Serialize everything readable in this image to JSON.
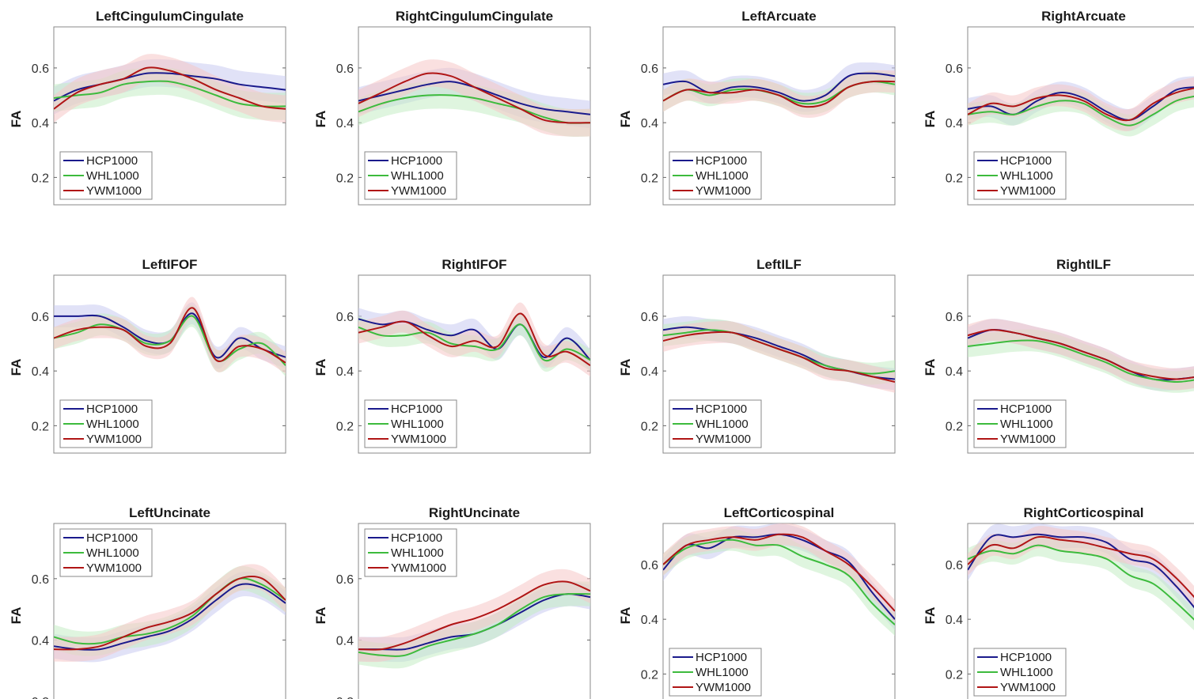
{
  "figure": {
    "legend_labels": [
      "HCP1000",
      "WHL1000",
      "YWM1000"
    ],
    "series_colors": {
      "HCP1000": "#1a1a8c",
      "WHL1000": "#3dbb3d",
      "YWM1000": "#b01515"
    },
    "band_colors": {
      "HCP1000": "#c9cbf0",
      "WHL1000": "#c5ecc5",
      "YWM1000": "#f5c6c6"
    },
    "ylabel": "FA",
    "yticks": [
      "0.2",
      "0.4",
      "0.6"
    ]
  },
  "chart_data": [
    {
      "type": "line",
      "title": "LeftCingulumCingulate",
      "ylabel": "FA",
      "ylim": [
        0.1,
        0.75
      ],
      "x": [
        0,
        1,
        2,
        3,
        4,
        5,
        6,
        7,
        8,
        9,
        10
      ],
      "legend": "bottom-left",
      "series": [
        {
          "name": "HCP1000",
          "values": [
            0.48,
            0.52,
            0.54,
            0.56,
            0.58,
            0.58,
            0.57,
            0.56,
            0.54,
            0.53,
            0.52
          ],
          "band": 0.05
        },
        {
          "name": "WHL1000",
          "values": [
            0.49,
            0.5,
            0.51,
            0.54,
            0.55,
            0.55,
            0.53,
            0.5,
            0.47,
            0.46,
            0.46
          ],
          "band": 0.05
        },
        {
          "name": "YWM1000",
          "values": [
            0.45,
            0.51,
            0.54,
            0.56,
            0.6,
            0.59,
            0.56,
            0.52,
            0.49,
            0.46,
            0.45
          ],
          "band": 0.05
        }
      ]
    },
    {
      "type": "line",
      "title": "RightCingulumCingulate",
      "ylabel": "FA",
      "ylim": [
        0.1,
        0.75
      ],
      "x": [
        0,
        1,
        2,
        3,
        4,
        5,
        6,
        7,
        8,
        9,
        10
      ],
      "legend": "bottom-left",
      "series": [
        {
          "name": "HCP1000",
          "values": [
            0.48,
            0.5,
            0.52,
            0.54,
            0.55,
            0.53,
            0.5,
            0.47,
            0.45,
            0.44,
            0.43
          ],
          "band": 0.05
        },
        {
          "name": "WHL1000",
          "values": [
            0.44,
            0.47,
            0.49,
            0.5,
            0.5,
            0.49,
            0.47,
            0.45,
            0.42,
            0.4,
            0.4
          ],
          "band": 0.05
        },
        {
          "name": "YWM1000",
          "values": [
            0.47,
            0.51,
            0.55,
            0.58,
            0.57,
            0.53,
            0.49,
            0.45,
            0.41,
            0.4,
            0.4
          ],
          "band": 0.05
        }
      ]
    },
    {
      "type": "line",
      "title": "LeftArcuate",
      "ylabel": "FA",
      "ylim": [
        0.1,
        0.75
      ],
      "x": [
        0,
        1,
        2,
        3,
        4,
        5,
        6,
        7,
        8,
        9,
        10
      ],
      "legend": "bottom-left",
      "series": [
        {
          "name": "HCP1000",
          "values": [
            0.54,
            0.55,
            0.51,
            0.53,
            0.53,
            0.51,
            0.48,
            0.5,
            0.57,
            0.58,
            0.57
          ],
          "band": 0.04
        },
        {
          "name": "WHL1000",
          "values": [
            0.48,
            0.52,
            0.5,
            0.52,
            0.52,
            0.5,
            0.47,
            0.48,
            0.53,
            0.55,
            0.54
          ],
          "band": 0.04
        },
        {
          "name": "YWM1000",
          "values": [
            0.48,
            0.52,
            0.51,
            0.51,
            0.52,
            0.5,
            0.46,
            0.47,
            0.53,
            0.55,
            0.55
          ],
          "band": 0.04
        }
      ]
    },
    {
      "type": "line",
      "title": "RightArcuate",
      "ylabel": "FA",
      "ylim": [
        0.1,
        0.75
      ],
      "x": [
        0,
        1,
        2,
        3,
        4,
        5,
        6,
        7,
        8,
        9,
        10
      ],
      "legend": "bottom-left",
      "series": [
        {
          "name": "HCP1000",
          "values": [
            0.45,
            0.46,
            0.43,
            0.48,
            0.51,
            0.49,
            0.44,
            0.41,
            0.46,
            0.52,
            0.53
          ],
          "band": 0.04
        },
        {
          "name": "WHL1000",
          "values": [
            0.43,
            0.44,
            0.43,
            0.46,
            0.48,
            0.47,
            0.42,
            0.39,
            0.43,
            0.48,
            0.5
          ],
          "band": 0.04
        },
        {
          "name": "YWM1000",
          "values": [
            0.43,
            0.47,
            0.46,
            0.49,
            0.5,
            0.48,
            0.43,
            0.41,
            0.47,
            0.51,
            0.53
          ],
          "band": 0.04
        }
      ]
    },
    {
      "type": "line",
      "title": "LeftIFOF",
      "ylabel": "FA",
      "ylim": [
        0.1,
        0.75
      ],
      "x": [
        0,
        1,
        2,
        3,
        4,
        5,
        6,
        7,
        8,
        9,
        10
      ],
      "legend": "bottom-left",
      "series": [
        {
          "name": "HCP1000",
          "values": [
            0.6,
            0.6,
            0.6,
            0.56,
            0.51,
            0.51,
            0.61,
            0.45,
            0.52,
            0.48,
            0.45
          ],
          "band": 0.04
        },
        {
          "name": "WHL1000",
          "values": [
            0.52,
            0.54,
            0.57,
            0.55,
            0.5,
            0.51,
            0.6,
            0.44,
            0.48,
            0.5,
            0.42
          ],
          "band": 0.04
        },
        {
          "name": "YWM1000",
          "values": [
            0.52,
            0.55,
            0.56,
            0.55,
            0.49,
            0.5,
            0.63,
            0.44,
            0.49,
            0.48,
            0.43
          ],
          "band": 0.04
        }
      ]
    },
    {
      "type": "line",
      "title": "RightIFOF",
      "ylabel": "FA",
      "ylim": [
        0.1,
        0.75
      ],
      "x": [
        0,
        1,
        2,
        3,
        4,
        5,
        6,
        7,
        8,
        9,
        10
      ],
      "legend": "bottom-left",
      "series": [
        {
          "name": "HCP1000",
          "values": [
            0.59,
            0.57,
            0.58,
            0.55,
            0.53,
            0.55,
            0.48,
            0.57,
            0.45,
            0.52,
            0.44
          ],
          "band": 0.04
        },
        {
          "name": "WHL1000",
          "values": [
            0.56,
            0.53,
            0.53,
            0.54,
            0.5,
            0.49,
            0.48,
            0.57,
            0.44,
            0.48,
            0.44
          ],
          "band": 0.04
        },
        {
          "name": "YWM1000",
          "values": [
            0.54,
            0.56,
            0.58,
            0.53,
            0.49,
            0.51,
            0.49,
            0.61,
            0.46,
            0.47,
            0.42
          ],
          "band": 0.04
        }
      ]
    },
    {
      "type": "line",
      "title": "LeftILF",
      "ylabel": "FA",
      "ylim": [
        0.1,
        0.75
      ],
      "x": [
        0,
        1,
        2,
        3,
        4,
        5,
        6,
        7,
        8,
        9,
        10
      ],
      "legend": "bottom-left",
      "series": [
        {
          "name": "HCP1000",
          "values": [
            0.55,
            0.56,
            0.55,
            0.54,
            0.52,
            0.49,
            0.46,
            0.42,
            0.4,
            0.38,
            0.37
          ],
          "band": 0.04
        },
        {
          "name": "WHL1000",
          "values": [
            0.53,
            0.54,
            0.55,
            0.54,
            0.51,
            0.48,
            0.45,
            0.42,
            0.4,
            0.39,
            0.4
          ],
          "band": 0.04
        },
        {
          "name": "YWM1000",
          "values": [
            0.51,
            0.53,
            0.54,
            0.54,
            0.51,
            0.48,
            0.45,
            0.41,
            0.4,
            0.38,
            0.36
          ],
          "band": 0.04
        }
      ]
    },
    {
      "type": "line",
      "title": "RightILF",
      "ylabel": "FA",
      "ylim": [
        0.1,
        0.75
      ],
      "x": [
        0,
        1,
        2,
        3,
        4,
        5,
        6,
        7,
        8,
        9,
        10
      ],
      "legend": "bottom-left",
      "series": [
        {
          "name": "HCP1000",
          "values": [
            0.52,
            0.55,
            0.54,
            0.52,
            0.5,
            0.47,
            0.44,
            0.4,
            0.37,
            0.37,
            0.38
          ],
          "band": 0.04
        },
        {
          "name": "WHL1000",
          "values": [
            0.49,
            0.5,
            0.51,
            0.51,
            0.49,
            0.46,
            0.43,
            0.39,
            0.37,
            0.36,
            0.37
          ],
          "band": 0.04
        },
        {
          "name": "YWM1000",
          "values": [
            0.53,
            0.55,
            0.54,
            0.52,
            0.5,
            0.47,
            0.44,
            0.4,
            0.38,
            0.37,
            0.38
          ],
          "band": 0.04
        }
      ]
    },
    {
      "type": "line",
      "title": "LeftUncinate",
      "ylabel": "FA",
      "ylim": [
        0.2,
        0.78
      ],
      "x": [
        0,
        1,
        2,
        3,
        4,
        5,
        6,
        7,
        8,
        9,
        10
      ],
      "legend": "top-left",
      "series": [
        {
          "name": "HCP1000",
          "values": [
            0.38,
            0.37,
            0.37,
            0.39,
            0.41,
            0.43,
            0.47,
            0.53,
            0.58,
            0.57,
            0.52
          ],
          "band": 0.04
        },
        {
          "name": "WHL1000",
          "values": [
            0.41,
            0.39,
            0.39,
            0.41,
            0.42,
            0.44,
            0.48,
            0.55,
            0.6,
            0.58,
            0.53
          ],
          "band": 0.04
        },
        {
          "name": "YWM1000",
          "values": [
            0.37,
            0.37,
            0.38,
            0.41,
            0.44,
            0.46,
            0.49,
            0.55,
            0.6,
            0.6,
            0.53
          ],
          "band": 0.04
        }
      ]
    },
    {
      "type": "line",
      "title": "RightUncinate",
      "ylabel": "FA",
      "ylim": [
        0.2,
        0.78
      ],
      "x": [
        0,
        1,
        2,
        3,
        4,
        5,
        6,
        7,
        8,
        9,
        10
      ],
      "legend": "top-left",
      "series": [
        {
          "name": "HCP1000",
          "values": [
            0.37,
            0.37,
            0.37,
            0.39,
            0.41,
            0.42,
            0.45,
            0.49,
            0.53,
            0.55,
            0.54
          ],
          "band": 0.04
        },
        {
          "name": "WHL1000",
          "values": [
            0.36,
            0.35,
            0.35,
            0.38,
            0.4,
            0.42,
            0.45,
            0.5,
            0.54,
            0.55,
            0.55
          ],
          "band": 0.04
        },
        {
          "name": "YWM1000",
          "values": [
            0.37,
            0.37,
            0.39,
            0.42,
            0.45,
            0.47,
            0.5,
            0.54,
            0.58,
            0.59,
            0.56
          ],
          "band": 0.04
        }
      ]
    },
    {
      "type": "line",
      "title": "LeftCorticospinal",
      "ylabel": "FA",
      "ylim": [
        0.1,
        0.75
      ],
      "x": [
        0,
        1,
        2,
        3,
        4,
        5,
        6,
        7,
        8,
        9,
        10
      ],
      "legend": "bottom-left",
      "series": [
        {
          "name": "HCP1000",
          "values": [
            0.58,
            0.67,
            0.66,
            0.7,
            0.7,
            0.71,
            0.69,
            0.65,
            0.61,
            0.5,
            0.4
          ],
          "band": 0.04
        },
        {
          "name": "WHL1000",
          "values": [
            0.6,
            0.66,
            0.68,
            0.69,
            0.67,
            0.67,
            0.63,
            0.6,
            0.56,
            0.46,
            0.38
          ],
          "band": 0.04
        },
        {
          "name": "YWM1000",
          "values": [
            0.6,
            0.67,
            0.69,
            0.7,
            0.69,
            0.71,
            0.7,
            0.65,
            0.6,
            0.52,
            0.43
          ],
          "band": 0.04
        }
      ]
    },
    {
      "type": "line",
      "title": "RightCorticospinal",
      "ylabel": "FA",
      "ylim": [
        0.1,
        0.75
      ],
      "x": [
        0,
        1,
        2,
        3,
        4,
        5,
        6,
        7,
        8,
        9,
        10
      ],
      "legend": "bottom-left",
      "series": [
        {
          "name": "HCP1000",
          "values": [
            0.58,
            0.7,
            0.7,
            0.71,
            0.7,
            0.7,
            0.68,
            0.62,
            0.6,
            0.52,
            0.42
          ],
          "band": 0.04
        },
        {
          "name": "WHL1000",
          "values": [
            0.62,
            0.65,
            0.64,
            0.67,
            0.65,
            0.64,
            0.62,
            0.56,
            0.53,
            0.46,
            0.38
          ],
          "band": 0.04
        },
        {
          "name": "YWM1000",
          "values": [
            0.6,
            0.67,
            0.66,
            0.7,
            0.69,
            0.68,
            0.66,
            0.64,
            0.62,
            0.55,
            0.46
          ],
          "band": 0.04
        }
      ]
    }
  ]
}
